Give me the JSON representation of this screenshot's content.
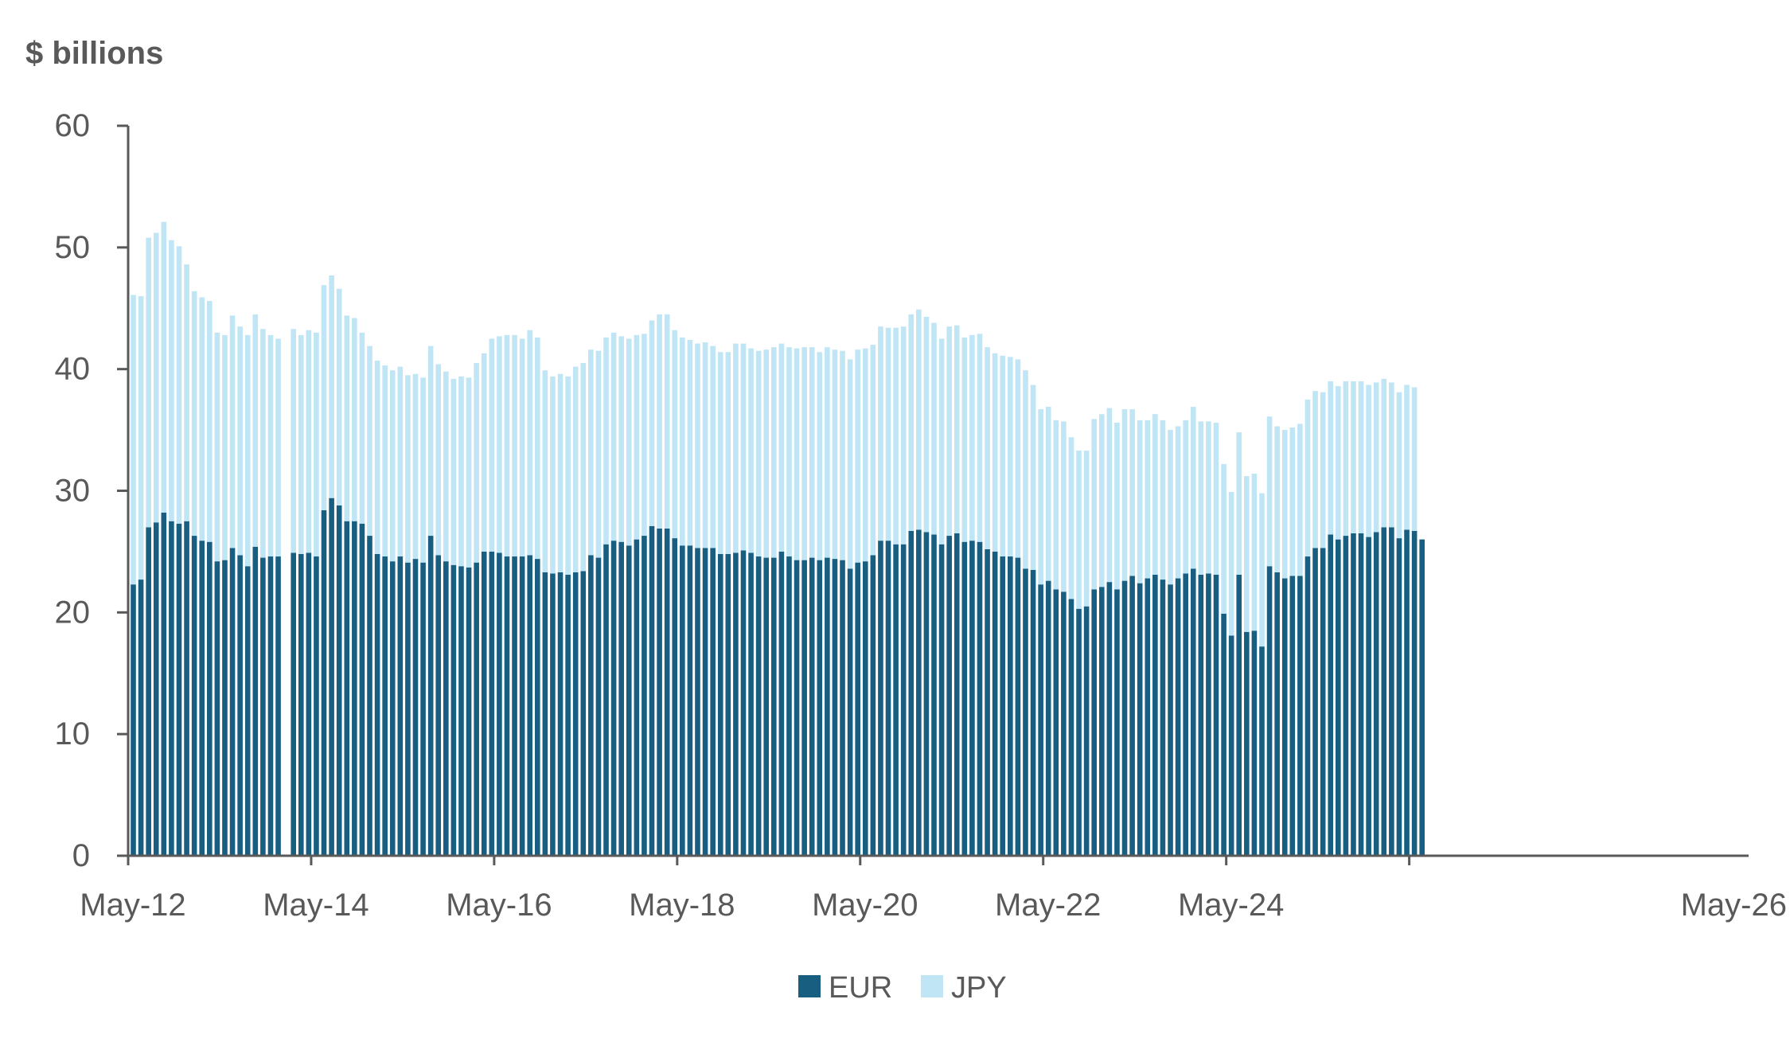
{
  "chart_data": {
    "type": "bar",
    "stacked": true,
    "ylabel": "$ billions",
    "ylim": [
      0,
      60
    ],
    "yticks": [
      "0",
      "10",
      "20",
      "30",
      "40",
      "50",
      "60"
    ],
    "xticks": [
      "May-12",
      "May-14",
      "May-16",
      "May-18",
      "May-20",
      "May-22",
      "May-24",
      "May-26"
    ],
    "x_start": "2012-05",
    "series": [
      {
        "name": "EUR",
        "color": "#175e80",
        "values": [
          22.3,
          22.7,
          27.0,
          27.4,
          28.2,
          27.5,
          27.3,
          27.5,
          26.3,
          25.9,
          25.8,
          24.2,
          24.3,
          25.3,
          24.7,
          23.8,
          25.4,
          24.5,
          24.6,
          24.6,
          null,
          24.9,
          24.8,
          24.9,
          24.6,
          28.4,
          29.4,
          28.8,
          27.5,
          27.5,
          27.3,
          26.3,
          24.8,
          24.6,
          24.2,
          24.6,
          24.1,
          24.4,
          24.1,
          26.3,
          24.7,
          24.2,
          23.9,
          23.8,
          23.7,
          24.1,
          25.0,
          25.0,
          24.9,
          24.6,
          24.6,
          24.6,
          24.7,
          24.4,
          23.3,
          23.2,
          23.3,
          23.1,
          23.3,
          23.4,
          24.7,
          24.5,
          25.6,
          25.9,
          25.8,
          25.5,
          26.0,
          26.3,
          27.1,
          26.9,
          26.9,
          26.1,
          25.5,
          25.5,
          25.3,
          25.3,
          25.3,
          24.8,
          24.8,
          24.9,
          25.1,
          24.9,
          24.6,
          24.5,
          24.5,
          25.0,
          24.6,
          24.3,
          24.3,
          24.5,
          24.3,
          24.5,
          24.4,
          24.3,
          23.6,
          24.1,
          24.2,
          24.7,
          25.9,
          25.9,
          25.6,
          25.6,
          26.7,
          26.8,
          26.6,
          26.4,
          25.6,
          26.3,
          26.5,
          25.8,
          25.9,
          25.8,
          25.2,
          25.0,
          24.6,
          24.6,
          24.5,
          23.6,
          23.5,
          22.3,
          22.6,
          21.9,
          21.7,
          21.1,
          20.3,
          20.5,
          21.9,
          22.1,
          22.5,
          21.9,
          22.6,
          23.0,
          22.4,
          22.8,
          23.1,
          22.7,
          22.3,
          22.8,
          23.2,
          23.6,
          23.1,
          23.2,
          23.1,
          19.9,
          18.1,
          23.1,
          18.4,
          18.5,
          17.2,
          23.8,
          23.3,
          22.8,
          23.0,
          23.0,
          24.6,
          25.3,
          25.3,
          26.4,
          26.0,
          26.3,
          26.5,
          26.5,
          26.2,
          26.6,
          27.0,
          27.0,
          26.1,
          26.8,
          26.7,
          26.0
        ]
      },
      {
        "name": "JPY",
        "color": "#c0e5f5",
        "values": [
          23.8,
          23.3,
          23.8,
          23.8,
          23.9,
          23.1,
          22.8,
          21.1,
          20.1,
          20.0,
          19.8,
          18.8,
          18.5,
          19.1,
          18.8,
          19.0,
          19.1,
          18.8,
          18.2,
          17.9,
          null,
          18.4,
          18.0,
          18.3,
          18.4,
          18.5,
          18.3,
          17.8,
          16.9,
          16.7,
          15.7,
          15.6,
          15.9,
          15.7,
          15.7,
          15.6,
          15.4,
          15.2,
          15.2,
          15.6,
          15.7,
          15.6,
          15.3,
          15.6,
          15.6,
          16.4,
          16.3,
          17.5,
          17.8,
          18.2,
          18.2,
          17.9,
          18.5,
          18.2,
          16.6,
          16.2,
          16.3,
          16.3,
          16.9,
          17.1,
          16.9,
          17.0,
          17.0,
          17.1,
          16.9,
          17.0,
          16.8,
          16.6,
          16.9,
          17.6,
          17.6,
          17.1,
          17.1,
          16.9,
          16.8,
          16.9,
          16.6,
          16.6,
          16.6,
          17.2,
          17.0,
          16.8,
          16.9,
          17.1,
          17.3,
          17.1,
          17.2,
          17.4,
          17.5,
          17.3,
          17.1,
          17.3,
          17.2,
          17.2,
          17.2,
          17.5,
          17.5,
          17.3,
          17.6,
          17.5,
          17.8,
          17.9,
          17.8,
          18.1,
          17.7,
          17.4,
          16.9,
          17.2,
          17.1,
          16.8,
          16.9,
          17.1,
          16.6,
          16.3,
          16.5,
          16.4,
          16.3,
          16.3,
          15.2,
          14.4,
          14.3,
          13.9,
          14.0,
          13.3,
          13.0,
          12.8,
          14.0,
          14.2,
          14.3,
          13.7,
          14.1,
          13.7,
          13.4,
          13.0,
          13.2,
          13.1,
          12.7,
          12.5,
          12.6,
          13.3,
          12.6,
          12.5,
          12.5,
          12.3,
          11.8,
          11.7,
          12.8,
          12.9,
          12.6,
          12.3,
          12.0,
          12.2,
          12.2,
          12.5,
          12.9,
          12.9,
          12.8,
          12.6,
          12.6,
          12.7,
          12.5,
          12.5,
          12.5,
          12.3,
          12.2,
          11.9,
          12.0,
          11.9,
          11.8
        ]
      }
    ]
  }
}
